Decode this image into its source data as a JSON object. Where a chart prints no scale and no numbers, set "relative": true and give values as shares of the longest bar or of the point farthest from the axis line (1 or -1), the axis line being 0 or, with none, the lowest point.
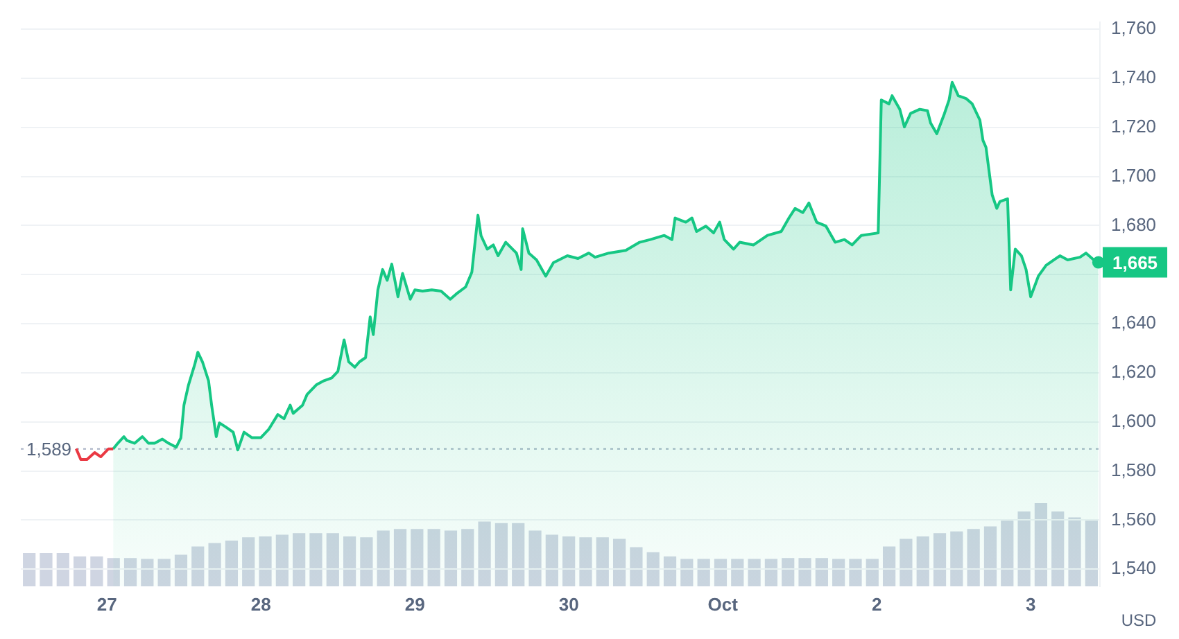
{
  "chart_data": [
    {
      "type": "line",
      "ylabel": "USD",
      "xlim": [
        "--09-26T10:34",
        "--10-03T10:48"
      ],
      "xticks": [
        {
          "value": "--09-27",
          "label": "27"
        },
        {
          "value": "--09-28",
          "label": "28"
        },
        {
          "value": "--09-29",
          "label": "29"
        },
        {
          "value": "--09-30",
          "label": "30"
        },
        {
          "value": "--10-01",
          "label": "Oct"
        },
        {
          "value": "--10-02",
          "label": "2"
        },
        {
          "value": "--10-03",
          "label": "3"
        }
      ],
      "ylim": [
        1533,
        1763
      ],
      "yticks": [
        {
          "value": 1540,
          "label": "1,540"
        },
        {
          "value": 1560,
          "label": "1,560"
        },
        {
          "value": 1580,
          "label": "1,580"
        },
        {
          "value": 1600,
          "label": "1,600"
        },
        {
          "value": 1620,
          "label": "1,620"
        },
        {
          "value": 1640,
          "label": "1,640"
        },
        {
          "value": 1660,
          "label": null
        },
        {
          "value": 1680,
          "label": "1,680"
        },
        {
          "value": 1700,
          "label": "1,700"
        },
        {
          "value": 1720,
          "label": "1,720"
        },
        {
          "value": 1740,
          "label": "1,740"
        },
        {
          "value": 1760,
          "label": "1,760"
        }
      ],
      "grid": "y",
      "legend": false,
      "marker": "none",
      "line_style": "solid",
      "ref_lines": [
        {
          "axis": "y",
          "value": 1589,
          "label": "1,589",
          "line_style": "dotted",
          "color": "#a6b0c3"
        }
      ],
      "annotations": [
        {
          "text": "1,665",
          "x": "--10-03T10:34",
          "y": 1665
        }
      ],
      "series": [
        {
          "type": "line",
          "color": "#ea3943",
          "x": [
            "--09-26T19:12",
            "--09-26T19:55",
            "--09-26T20:53",
            "--09-26T22:05",
            "--09-26T23:02",
            "--09-27T00:14",
            "--09-27T00:58"
          ],
          "values": [
            1589.1,
            1584.7,
            1584.7,
            1587.5,
            1585.8,
            1589,
            1589
          ]
        },
        {
          "type": "area",
          "color": "#16c784",
          "x": [
            "--09-27T00:58",
            "--09-27T01:41",
            "--09-27T02:38",
            "--09-27T03:07",
            "--09-27T04:19",
            "--09-27T05:31",
            "--09-27T06:29",
            "--09-27T07:26",
            "--09-27T08:38",
            "--09-27T09:36",
            "--09-27T10:48",
            "--09-27T11:31",
            "--09-27T12:00",
            "--09-27T12:43",
            "--09-27T13:41",
            "--09-27T14:10",
            "--09-27T14:53",
            "--09-27T15:50",
            "--09-27T16:19",
            "--09-27T17:02",
            "--09-27T17:31",
            "--09-27T18:29",
            "--09-27T19:41",
            "--09-27T20:24",
            "--09-27T21:22",
            "--09-27T22:34",
            "--09-28T00:00",
            "--09-28T01:12",
            "--09-28T02:38",
            "--09-28T03:36",
            "--09-28T04:34",
            "--09-28T05:02",
            "--09-28T06:29",
            "--09-28T07:12",
            "--09-28T08:38",
            "--09-28T09:50",
            "--09-28T11:02",
            "--09-28T12:00",
            "--09-28T12:58",
            "--09-28T13:41",
            "--09-28T14:38",
            "--09-28T15:22",
            "--09-28T16:19",
            "--09-28T17:02",
            "--09-28T17:31",
            "--09-28T18:14",
            "--09-28T18:58",
            "--09-28T19:41",
            "--09-28T20:24",
            "--09-28T21:22",
            "--09-28T22:05",
            "--09-28T23:17",
            "--09-29T00:00",
            "--09-29T01:12",
            "--09-29T02:38",
            "--09-29T04:05",
            "--09-29T05:31",
            "--09-29T06:29",
            "--09-29T07:55",
            "--09-29T08:53",
            "--09-29T09:50",
            "--09-29T10:19",
            "--09-29T11:17",
            "--09-29T12:14",
            "--09-29T12:58",
            "--09-29T14:10",
            "--09-29T15:50",
            "--09-29T16:34",
            "--09-29T16:48",
            "--09-29T17:46",
            "--09-29T18:58",
            "--09-29T20:24",
            "--09-29T21:36",
            "--09-29T23:46",
            "--09-30T01:26",
            "--09-30T03:07",
            "--09-30T04:05",
            "--09-30T06:14",
            "--09-30T08:53",
            "--09-30T11:02",
            "--09-30T12:43",
            "--09-30T14:53",
            "--09-30T16:05",
            "--09-30T16:34",
            "--09-30T18:14",
            "--09-30T19:12",
            "--09-30T19:55",
            "--09-30T21:22",
            "--09-30T22:34",
            "--09-30T23:31",
            "--10-01T00:14",
            "--10-01T01:41",
            "--10-01T02:38",
            "--10-01T04:48",
            "--10-01T06:58",
            "--10-01T09:07",
            "--10-01T10:19",
            "--10-01T11:17",
            "--10-01T12:29",
            "--10-01T13:26",
            "--10-01T14:38",
            "--10-01T16:05",
            "--10-01T17:31",
            "--10-01T18:58",
            "--10-01T20:10",
            "--10-01T21:36",
            "--10-02T00:14",
            "--10-02T00:43",
            "--10-02T01:55",
            "--10-02T02:24",
            "--10-02T03:36",
            "--10-02T04:19",
            "--10-02T05:17",
            "--10-02T06:43",
            "--10-02T07:55",
            "--10-02T08:24",
            "--10-02T09:22",
            "--10-02T10:34",
            "--10-02T11:17",
            "--10-02T11:46",
            "--10-02T12:43",
            "--10-02T13:55",
            "--10-02T14:53",
            "--10-02T16:05",
            "--10-02T16:34",
            "--10-02T17:02",
            "--10-02T18:00",
            "--10-02T18:43",
            "--10-02T19:12",
            "--10-02T20:24",
            "--10-02T20:53",
            "--10-02T21:36",
            "--10-02T22:34",
            "--10-02T23:17",
            "--10-03T00:00",
            "--10-03T01:12",
            "--10-03T02:24",
            "--10-03T03:36",
            "--10-03T04:34",
            "--10-03T05:46",
            "--10-03T07:41",
            "--10-03T08:38",
            "--10-03T09:50",
            "--10-03T10:34"
          ],
          "values": [
            1589,
            1591.3,
            1594,
            1592.4,
            1591.3,
            1594,
            1591.3,
            1591.3,
            1593,
            1591.3,
            1589.7,
            1593.5,
            1606.8,
            1615.1,
            1623.4,
            1628.4,
            1624.5,
            1616.8,
            1606.8,
            1594,
            1599.6,
            1598,
            1595.8,
            1588.6,
            1595.8,
            1593.6,
            1593.6,
            1596.9,
            1603,
            1601.3,
            1606.8,
            1603.5,
            1606.8,
            1611.2,
            1615.1,
            1616.8,
            1617.9,
            1620.6,
            1633.4,
            1624.5,
            1622.3,
            1624.5,
            1626.2,
            1642.8,
            1635.6,
            1653.8,
            1662.1,
            1657.7,
            1664.3,
            1651,
            1660.5,
            1650,
            1653.8,
            1653.3,
            1653.8,
            1653.3,
            1650,
            1652.2,
            1655,
            1661,
            1684.2,
            1675.9,
            1670.4,
            1672.1,
            1667.7,
            1673.2,
            1668.8,
            1662.1,
            1678.7,
            1668.8,
            1666,
            1659.4,
            1664.9,
            1667.7,
            1666.6,
            1668.8,
            1667.1,
            1668.8,
            1669.9,
            1673.2,
            1674.3,
            1676,
            1674.3,
            1683.1,
            1681.4,
            1683.1,
            1677.6,
            1679.8,
            1677,
            1681.4,
            1674.3,
            1670.4,
            1673.2,
            1672.1,
            1676,
            1677.6,
            1683.1,
            1687,
            1685.3,
            1689.2,
            1681.4,
            1679.8,
            1673.2,
            1674.3,
            1672.1,
            1676,
            1677,
            1731.2,
            1729.6,
            1732.9,
            1727.4,
            1720.2,
            1725.7,
            1727.4,
            1726.8,
            1721.8,
            1717.4,
            1725.7,
            1731.2,
            1738.4,
            1732.9,
            1731.8,
            1729.6,
            1723,
            1714.7,
            1711.9,
            1692.5,
            1687,
            1689.8,
            1690.9,
            1653.8,
            1670.4,
            1667.7,
            1662.1,
            1651,
            1659.4,
            1663.8,
            1666,
            1667.7,
            1666,
            1667.1,
            1668.8,
            1666,
            1665
          ]
        }
      ]
    },
    {
      "type": "bar",
      "relative": true,
      "color": "#cfd5e2",
      "categories": [
        null,
        null,
        null,
        null,
        null,
        null,
        null,
        null,
        null,
        null,
        null,
        null,
        null,
        null,
        null,
        null,
        null,
        null,
        null,
        null,
        null,
        null,
        null,
        null,
        null,
        null,
        null,
        null,
        null,
        null,
        null,
        null,
        null,
        null,
        null,
        null,
        null,
        null,
        null,
        null,
        null,
        null,
        null,
        null,
        null,
        null,
        null,
        null,
        null,
        null,
        null,
        null,
        null,
        null,
        null,
        null,
        null,
        null,
        null,
        null,
        null,
        null,
        null,
        null
      ],
      "values": [
        0.4,
        0.4,
        0.4,
        0.36,
        0.36,
        0.34,
        0.34,
        0.33,
        0.33,
        0.38,
        0.48,
        0.52,
        0.55,
        0.59,
        0.6,
        0.62,
        0.64,
        0.64,
        0.64,
        0.6,
        0.59,
        0.67,
        0.69,
        0.69,
        0.69,
        0.67,
        0.69,
        0.78,
        0.76,
        0.76,
        0.67,
        0.62,
        0.6,
        0.59,
        0.59,
        0.57,
        0.47,
        0.41,
        0.36,
        0.33,
        0.33,
        0.33,
        0.33,
        0.33,
        0.33,
        0.34,
        0.34,
        0.34,
        0.33,
        0.33,
        0.33,
        0.48,
        0.57,
        0.6,
        0.64,
        0.66,
        0.69,
        0.72,
        0.79,
        0.9,
        1,
        0.9,
        0.83,
        0.79
      ]
    }
  ]
}
